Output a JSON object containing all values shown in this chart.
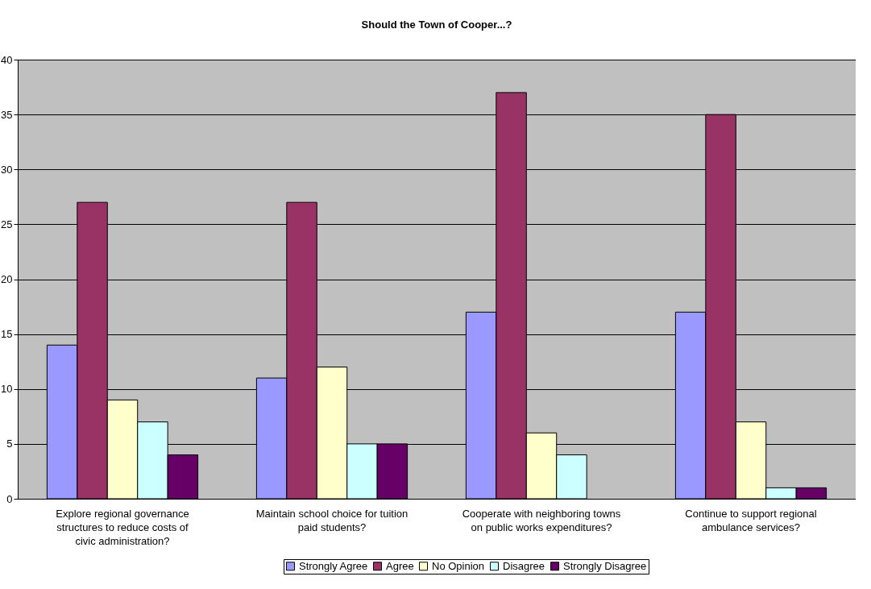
{
  "chart_data": {
    "type": "bar",
    "title": "Should the Town of Cooper...?",
    "categories": [
      "Explore regional governance structures to reduce costs of civic administration?",
      "Maintain school choice for tuition paid students?",
      "Cooperate with neighboring towns on public works expenditures?",
      "Continue to support regional ambulance services?"
    ],
    "series": [
      {
        "name": "Strongly Agree",
        "color": "#9999ff",
        "values": [
          14,
          11,
          17,
          17
        ]
      },
      {
        "name": "Agree",
        "color": "#993366",
        "values": [
          27,
          27,
          37,
          35
        ]
      },
      {
        "name": "No Opinion",
        "color": "#ffffcc",
        "values": [
          9,
          12,
          6,
          7
        ]
      },
      {
        "name": "Disagree",
        "color": "#ccffff",
        "values": [
          7,
          5,
          4,
          1
        ]
      },
      {
        "name": "Strongly Disagree",
        "color": "#660066",
        "values": [
          4,
          5,
          0,
          1
        ]
      }
    ],
    "ylim": [
      0,
      40
    ],
    "yticks": [
      0,
      5,
      10,
      15,
      20,
      25,
      30,
      35,
      40
    ],
    "grid": "y",
    "legend": "bottom"
  }
}
